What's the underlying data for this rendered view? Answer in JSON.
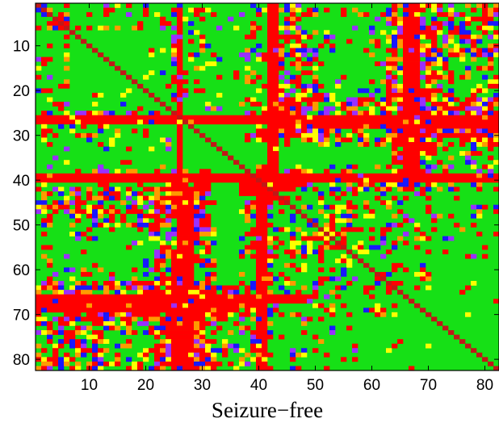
{
  "chart_data": {
    "type": "heatmap",
    "title": "",
    "xlabel": "Seizure−free",
    "ylabel": "",
    "xlim": [
      0.5,
      82.5
    ],
    "ylim": [
      0.5,
      82.5
    ],
    "y_axis_direction": "top-to-bottom",
    "x_ticks": [
      10,
      20,
      30,
      40,
      50,
      60,
      70,
      80
    ],
    "y_ticks": [
      10,
      20,
      30,
      40,
      50,
      60,
      70,
      80
    ],
    "n_rows": 82,
    "n_cols": 82,
    "grid": false,
    "legend": "none",
    "colors": {
      "0": "#16e016",
      "1": "#ff0000",
      "2": "#ffff00",
      "3": "#ff9a00",
      "4": "#1818ff",
      "5": "#9a30ff",
      "6": "#c01818"
    },
    "background_value": 0,
    "diagonal_value": 6,
    "cell_runs": [
      {
        "row": 26,
        "from": 1,
        "to": 82,
        "value": 1
      },
      {
        "row": 27,
        "from": 1,
        "to": 82,
        "value": 1
      },
      {
        "row": 28,
        "from": 42,
        "to": 82,
        "value": 1
      },
      {
        "row": 39,
        "from": 1,
        "to": 82,
        "value": 1
      },
      {
        "row": 40,
        "from": 1,
        "to": 82,
        "value": 1
      },
      {
        "row": 41,
        "from": 38,
        "to": 48,
        "value": 1
      },
      {
        "row": 42,
        "from": 38,
        "to": 46,
        "value": 1
      },
      {
        "row": 66,
        "from": 1,
        "to": 50,
        "value": 1
      },
      {
        "row": 67,
        "from": 1,
        "to": 48,
        "value": 1
      },
      {
        "row": 68,
        "from": 1,
        "to": 40,
        "value": 1
      },
      {
        "row": 69,
        "from": 1,
        "to": 36,
        "value": 1
      },
      {
        "col": 26,
        "from": 1,
        "to": 82,
        "value": 1
      },
      {
        "col": 27,
        "from": 40,
        "to": 82,
        "value": 1
      },
      {
        "col": 28,
        "from": 42,
        "to": 82,
        "value": 1
      },
      {
        "col": 25,
        "from": 60,
        "to": 82,
        "value": 1
      },
      {
        "col": 40,
        "from": 38,
        "to": 82,
        "value": 1
      },
      {
        "col": 41,
        "from": 38,
        "to": 82,
        "value": 1
      },
      {
        "col": 42,
        "from": 1,
        "to": 45,
        "value": 1
      },
      {
        "col": 43,
        "from": 1,
        "to": 44,
        "value": 1
      },
      {
        "col": 66,
        "from": 1,
        "to": 42,
        "value": 1
      },
      {
        "col": 67,
        "from": 1,
        "to": 42,
        "value": 1
      },
      {
        "col": 68,
        "from": 1,
        "to": 40,
        "value": 1
      }
    ],
    "dense_regions": [
      {
        "rows": [
          2,
          20
        ],
        "cols": [
          1,
          6
        ],
        "fill": 0.22
      },
      {
        "rows": [
          1,
          22
        ],
        "cols": [
          25,
          29
        ],
        "fill": 0.28
      },
      {
        "rows": [
          1,
          32
        ],
        "cols": [
          42,
          50
        ],
        "fill": 0.42
      },
      {
        "rows": [
          22,
          32
        ],
        "cols": [
          42,
          82
        ],
        "fill": 0.55
      },
      {
        "rows": [
          1,
          42
        ],
        "cols": [
          63,
          72
        ],
        "fill": 0.4
      },
      {
        "rows": [
          1,
          12
        ],
        "cols": [
          74,
          82
        ],
        "fill": 0.25
      },
      {
        "rows": [
          1,
          24
        ],
        "cols": [
          30,
          40
        ],
        "fill": 0.12
      },
      {
        "rows": [
          20,
          30
        ],
        "cols": [
          1,
          20
        ],
        "fill": 0.12
      },
      {
        "rows": [
          38,
          82
        ],
        "cols": [
          1,
          22
        ],
        "fill": 0.2
      },
      {
        "rows": [
          38,
          82
        ],
        "cols": [
          22,
          31
        ],
        "fill": 0.45
      },
      {
        "rows": [
          40,
          82
        ],
        "cols": [
          37,
          42
        ],
        "fill": 0.4
      },
      {
        "rows": [
          38,
          60
        ],
        "cols": [
          42,
          56
        ],
        "fill": 0.25
      },
      {
        "rows": [
          60,
          75
        ],
        "cols": [
          44,
          56
        ],
        "fill": 0.18
      },
      {
        "rows": [
          42,
          64
        ],
        "cols": [
          62,
          70
        ],
        "fill": 0.25
      },
      {
        "rows": [
          40,
          70
        ],
        "cols": [
          76,
          82
        ],
        "fill": 0.12
      },
      {
        "rows": [
          76,
          82
        ],
        "cols": [
          1,
          40
        ],
        "fill": 0.3
      },
      {
        "rows": [
          64,
          74
        ],
        "cols": [
          1,
          40
        ],
        "fill": 0.35
      }
    ]
  }
}
